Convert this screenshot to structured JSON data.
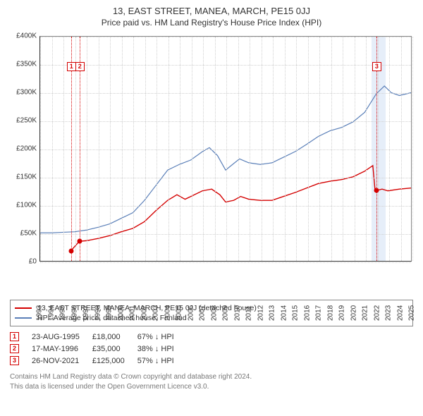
{
  "title": "13, EAST STREET, MANEA, MARCH, PE15 0JJ",
  "subtitle": "Price paid vs. HM Land Registry's House Price Index (HPI)",
  "chart": {
    "type": "line",
    "ylim": [
      0,
      400000
    ],
    "ytick_step": 50000,
    "ytick_prefix": "£",
    "ytick_suffix": "K",
    "x_years": [
      1993,
      1994,
      1995,
      1996,
      1997,
      1998,
      1999,
      2000,
      2001,
      2002,
      2003,
      2004,
      2005,
      2006,
      2007,
      2008,
      2009,
      2010,
      2011,
      2012,
      2013,
      2014,
      2015,
      2016,
      2017,
      2018,
      2019,
      2020,
      2021,
      2022,
      2023,
      2024,
      2025
    ],
    "background_color": "#ffffff",
    "grid_color": "#d0d0d0",
    "border_color": "#888888",
    "axis_color": "#333333",
    "shaded_range_year": [
      2021.5,
      2022.7
    ],
    "shade_color": "rgba(100,150,220,0.16)",
    "series": {
      "property": {
        "color": "#d40000",
        "width": 1.4,
        "points": [
          [
            1995.65,
            18000
          ],
          [
            1996.38,
            35000
          ],
          [
            1997.0,
            36000
          ],
          [
            1998.0,
            40000
          ],
          [
            1999.0,
            45000
          ],
          [
            2000.0,
            52000
          ],
          [
            2001.0,
            58000
          ],
          [
            2002.0,
            70000
          ],
          [
            2003.0,
            90000
          ],
          [
            2004.0,
            108000
          ],
          [
            2004.8,
            118000
          ],
          [
            2005.5,
            110000
          ],
          [
            2006.0,
            115000
          ],
          [
            2007.0,
            125000
          ],
          [
            2007.8,
            128000
          ],
          [
            2008.5,
            118000
          ],
          [
            2009.0,
            105000
          ],
          [
            2009.7,
            108000
          ],
          [
            2010.3,
            115000
          ],
          [
            2011.0,
            110000
          ],
          [
            2012.0,
            108000
          ],
          [
            2013.0,
            108000
          ],
          [
            2014.0,
            115000
          ],
          [
            2015.0,
            122000
          ],
          [
            2016.0,
            130000
          ],
          [
            2017.0,
            138000
          ],
          [
            2018.0,
            142000
          ],
          [
            2019.0,
            145000
          ],
          [
            2020.0,
            150000
          ],
          [
            2021.0,
            160000
          ],
          [
            2021.7,
            170000
          ],
          [
            2021.9,
            125000
          ],
          [
            2022.5,
            128000
          ],
          [
            2023.0,
            125000
          ],
          [
            2024.0,
            128000
          ],
          [
            2025.0,
            130000
          ]
        ]
      },
      "hpi": {
        "color": "#5a7fb8",
        "width": 1.2,
        "points": [
          [
            1993.0,
            50000
          ],
          [
            1994.0,
            50000
          ],
          [
            1995.0,
            51000
          ],
          [
            1996.0,
            52000
          ],
          [
            1997.0,
            55000
          ],
          [
            1998.0,
            60000
          ],
          [
            1999.0,
            66000
          ],
          [
            2000.0,
            76000
          ],
          [
            2001.0,
            86000
          ],
          [
            2002.0,
            108000
          ],
          [
            2003.0,
            135000
          ],
          [
            2004.0,
            162000
          ],
          [
            2005.0,
            172000
          ],
          [
            2006.0,
            180000
          ],
          [
            2007.0,
            195000
          ],
          [
            2007.6,
            202000
          ],
          [
            2008.3,
            188000
          ],
          [
            2009.0,
            162000
          ],
          [
            2009.6,
            172000
          ],
          [
            2010.2,
            182000
          ],
          [
            2011.0,
            175000
          ],
          [
            2012.0,
            172000
          ],
          [
            2013.0,
            175000
          ],
          [
            2014.0,
            185000
          ],
          [
            2015.0,
            195000
          ],
          [
            2016.0,
            208000
          ],
          [
            2017.0,
            222000
          ],
          [
            2018.0,
            232000
          ],
          [
            2019.0,
            238000
          ],
          [
            2020.0,
            248000
          ],
          [
            2021.0,
            265000
          ],
          [
            2022.0,
            298000
          ],
          [
            2022.7,
            312000
          ],
          [
            2023.3,
            300000
          ],
          [
            2024.0,
            295000
          ],
          [
            2025.0,
            300000
          ]
        ]
      }
    },
    "markers": [
      {
        "idx": "1",
        "year": 1995.65,
        "price": 18000
      },
      {
        "idx": "2",
        "year": 1996.38,
        "price": 35000
      },
      {
        "idx": "3",
        "year": 2021.9,
        "price": 125000
      }
    ]
  },
  "legend": [
    {
      "color": "#d40000",
      "label": "13, EAST STREET, MANEA, MARCH, PE15 0JJ (detached house)"
    },
    {
      "color": "#5a7fb8",
      "label": "HPI: Average price, detached house, Fenland"
    }
  ],
  "sales": [
    {
      "idx": "1",
      "date": "23-AUG-1995",
      "price": "£18,000",
      "delta": "67% ↓ HPI"
    },
    {
      "idx": "2",
      "date": "17-MAY-1996",
      "price": "£35,000",
      "delta": "38% ↓ HPI"
    },
    {
      "idx": "3",
      "date": "26-NOV-2021",
      "price": "£125,000",
      "delta": "57% ↓ HPI"
    }
  ],
  "footer": {
    "line1": "Contains HM Land Registry data © Crown copyright and database right 2024.",
    "line2": "This data is licensed under the Open Government Licence v3.0."
  }
}
